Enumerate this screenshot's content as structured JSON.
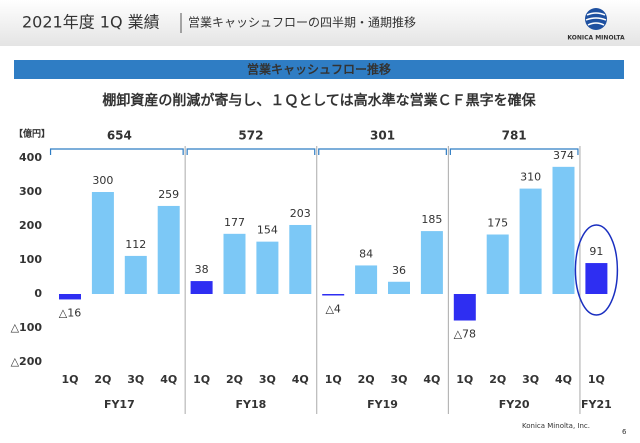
{
  "header": {
    "title": "2021年度 1Q 業績",
    "subtitle": "営業キャッシュフローの四半期・通期推移",
    "logo": "KONICA MINOLTA"
  },
  "banner": "営業キャッシュフロー推移",
  "footer": {
    "company": "Konica Minolta, Inc.",
    "page": "6"
  },
  "chart_data": {
    "type": "grouped-bar",
    "title": "棚卸資産の削減が寄与し、１Ｑとしては高水準な営業ＣＦ黒字を確保",
    "y_label": "【億円】",
    "ylim": [
      -200,
      400
    ],
    "yticks": [
      {
        "value": -200,
        "label": "△200"
      },
      {
        "value": -100,
        "label": "△100"
      },
      0,
      100,
      200,
      300,
      400
    ],
    "groups": [
      {
        "name": "FY17",
        "total": 654,
        "categories": [
          "1Q",
          "2Q",
          "3Q",
          "4Q"
        ],
        "values": [
          -16,
          300,
          112,
          259
        ],
        "value_labels": [
          "△16",
          "300",
          "112",
          "259"
        ],
        "colors": [
          "#2e2ef2",
          "#7cc8f6",
          "#7cc8f6",
          "#7cc8f6"
        ]
      },
      {
        "name": "FY18",
        "total": 572,
        "categories": [
          "1Q",
          "2Q",
          "3Q",
          "4Q"
        ],
        "values": [
          38,
          177,
          154,
          203
        ],
        "value_labels": [
          "38",
          "177",
          "154",
          "203"
        ],
        "colors": [
          "#2e2ef2",
          "#7cc8f6",
          "#7cc8f6",
          "#7cc8f6"
        ]
      },
      {
        "name": "FY19",
        "total": 301,
        "categories": [
          "1Q",
          "2Q",
          "3Q",
          "4Q"
        ],
        "values": [
          -4,
          84,
          36,
          185
        ],
        "value_labels": [
          "△4",
          "84",
          "36",
          "185"
        ],
        "colors": [
          "#2e2ef2",
          "#7cc8f6",
          "#7cc8f6",
          "#7cc8f6"
        ]
      },
      {
        "name": "FY20",
        "total": 781,
        "categories": [
          "1Q",
          "2Q",
          "3Q",
          "4Q"
        ],
        "values": [
          -78,
          175,
          310,
          374
        ],
        "value_labels": [
          "△78",
          "175",
          "310",
          "374"
        ],
        "colors": [
          "#2e2ef2",
          "#7cc8f6",
          "#7cc8f6",
          "#7cc8f6"
        ]
      },
      {
        "name": "FY21",
        "categories": [
          "1Q"
        ],
        "values": [
          91
        ],
        "value_labels": [
          "91"
        ],
        "colors": [
          "#2e2ef2"
        ]
      }
    ]
  }
}
